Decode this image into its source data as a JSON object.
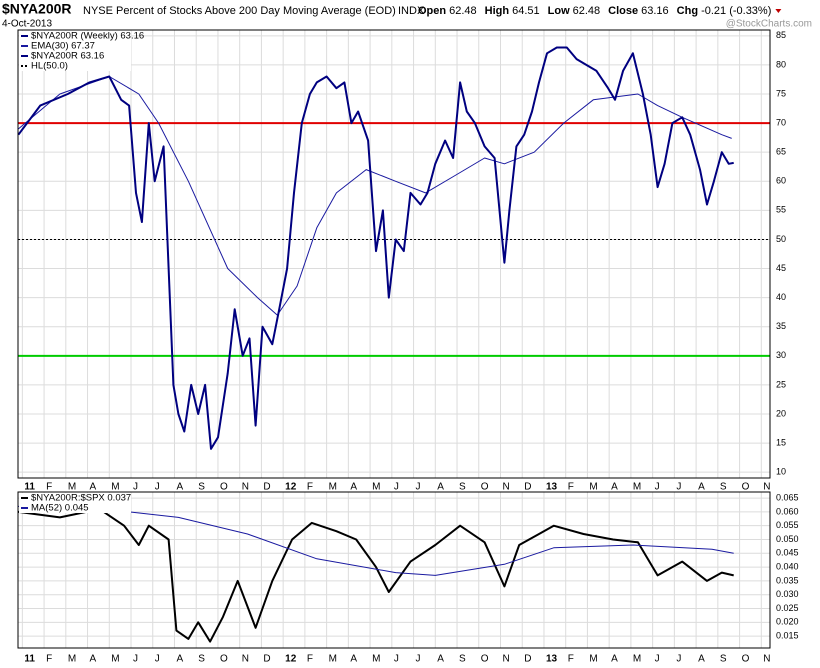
{
  "chart_data": [
    {
      "type": "line",
      "title": "$NYA200R",
      "subtitle": "NYSE Percent of Stocks Above 200 Day Moving Average (EOD)",
      "exchange": "INDX",
      "date": "4-Oct-2013",
      "quote": [
        {
          "label": "Open",
          "value": 62.48
        },
        {
          "label": "High",
          "value": 64.51
        },
        {
          "label": "Low",
          "value": 62.48
        },
        {
          "label": "Close",
          "value": 63.16
        },
        {
          "label": "Chg",
          "text": "-0.21 (-0.33%)"
        }
      ],
      "watermark": "@StockCharts.com",
      "bars_legend": "$NYA200R (Weekly) 63.16",
      "xlim": [
        -0.2,
        34.4
      ],
      "ylim": [
        9,
        86
      ],
      "yticks": [
        10,
        15,
        20,
        25,
        30,
        35,
        40,
        45,
        50,
        55,
        60,
        65,
        70,
        75,
        80,
        85
      ],
      "xticks": [
        {
          "value": 0,
          "label": "11"
        },
        {
          "value": 1,
          "label": "F"
        },
        {
          "value": 2,
          "label": "M"
        },
        {
          "value": 3,
          "label": "A"
        },
        {
          "value": 4,
          "label": "M"
        },
        {
          "value": 5,
          "label": "J"
        },
        {
          "value": 6,
          "label": "J"
        },
        {
          "value": 7,
          "label": "A"
        },
        {
          "value": 8,
          "label": "S"
        },
        {
          "value": 9,
          "label": "O"
        },
        {
          "value": 10,
          "label": "N"
        },
        {
          "value": 11,
          "label": "D"
        },
        {
          "value": 12,
          "label": "12"
        },
        {
          "value": 13,
          "label": "F"
        },
        {
          "value": 14,
          "label": "M"
        },
        {
          "value": 15,
          "label": "A"
        },
        {
          "value": 16,
          "label": "M"
        },
        {
          "value": 17,
          "label": "J"
        },
        {
          "value": 18,
          "label": "J"
        },
        {
          "value": 19,
          "label": "A"
        },
        {
          "value": 20,
          "label": "S"
        },
        {
          "value": 21,
          "label": "O"
        },
        {
          "value": 22,
          "label": "N"
        },
        {
          "value": 23,
          "label": "D"
        },
        {
          "value": 24,
          "label": "13"
        },
        {
          "value": 25,
          "label": "F"
        },
        {
          "value": 26,
          "label": "M"
        },
        {
          "value": 27,
          "label": "A"
        },
        {
          "value": 28,
          "label": "M"
        },
        {
          "value": 29,
          "label": "J"
        },
        {
          "value": 30,
          "label": "J"
        },
        {
          "value": 31,
          "label": "A"
        },
        {
          "value": 32,
          "label": "S"
        },
        {
          "value": 33,
          "label": "O"
        },
        {
          "value": 34,
          "label": "N"
        }
      ],
      "grid": true,
      "hlines": [
        {
          "name": "HL(50.0)",
          "value": 50,
          "color": "#000000",
          "style": "dotted"
        },
        {
          "value": 70,
          "color": "#e00000",
          "style": "solid"
        },
        {
          "value": 30,
          "color": "#00cc00",
          "style": "solid"
        }
      ],
      "series": [
        {
          "name": "EMA(30) 67.37",
          "color": "#1a1aa0",
          "width": 1,
          "x": [
            -0.18,
            1.73,
            4.0,
            5.36,
            6.27,
            7.64,
            9.45,
            10.82,
            11.73,
            12.64,
            13.55,
            14.45,
            15.82,
            17.18,
            18.55,
            19.91,
            21.27,
            22.18,
            23.55,
            24.91,
            26.27,
            28.32,
            29.23,
            30.36,
            32.18,
            32.64
          ],
          "values": [
            69,
            75,
            78,
            75,
            70,
            60,
            45,
            40,
            37,
            42,
            52,
            58,
            62,
            60,
            58,
            61,
            64,
            63,
            65,
            70,
            74,
            75,
            73,
            71,
            68,
            67.37
          ]
        },
        {
          "name": "$NYA200R 63.16",
          "color": "#000080",
          "width": 2,
          "x": [
            -0.18,
            0.82,
            2.09,
            3.09,
            4.0,
            4.55,
            4.91,
            5.23,
            5.5,
            5.82,
            6.09,
            6.5,
            6.95,
            7.18,
            7.45,
            7.77,
            8.09,
            8.41,
            8.68,
            9.0,
            9.45,
            9.77,
            10.14,
            10.45,
            10.73,
            11.05,
            11.5,
            11.82,
            12.18,
            12.5,
            12.86,
            13.23,
            13.55,
            14.0,
            14.45,
            14.82,
            15.14,
            15.45,
            15.91,
            16.27,
            16.59,
            16.86,
            17.18,
            17.55,
            17.86,
            18.32,
            18.64,
            19.0,
            19.45,
            19.82,
            20.14,
            20.45,
            20.82,
            21.27,
            21.73,
            22.18,
            22.41,
            22.73,
            23.09,
            23.45,
            23.77,
            24.14,
            24.59,
            25.05,
            25.5,
            25.95,
            26.41,
            26.95,
            27.27,
            27.64,
            28.09,
            28.55,
            28.91,
            29.23,
            29.55,
            29.91,
            30.36,
            30.73,
            31.18,
            31.5,
            31.82,
            32.18,
            32.5,
            32.73
          ],
          "values": [
            68,
            73,
            75,
            77,
            78,
            74,
            73,
            58,
            53,
            70,
            60,
            66,
            25,
            20,
            17,
            25,
            20,
            25,
            14,
            16,
            27,
            38,
            30,
            33,
            18,
            35,
            32,
            38,
            45,
            58,
            70,
            75,
            77,
            78,
            76,
            77,
            70,
            72,
            67,
            48,
            55,
            40,
            50,
            48,
            58,
            56,
            58,
            63,
            67,
            64,
            77,
            72,
            70,
            66,
            64,
            46,
            55,
            66,
            68,
            72,
            77,
            82,
            83,
            83,
            81,
            80,
            79,
            76,
            74,
            79,
            82,
            75,
            68,
            59,
            63,
            70,
            71,
            68,
            62,
            56,
            60,
            65,
            63,
            63.16
          ]
        }
      ]
    },
    {
      "type": "line",
      "xlim": [
        -0.2,
        34.4
      ],
      "ylim": [
        0.0107,
        0.0672
      ],
      "yticks": [
        0.015,
        {
          "value": 0.02,
          "label": "0.020"
        },
        0.025,
        {
          "value": 0.03,
          "label": "0.030"
        },
        0.035,
        {
          "value": 0.04,
          "label": "0.040"
        },
        0.045,
        {
          "value": 0.05,
          "label": "0.050"
        },
        0.055,
        {
          "value": 0.06,
          "label": "0.060"
        },
        0.065
      ],
      "grid": true,
      "series": [
        {
          "name": "$NYA200R:$SPX 0.037",
          "color": "#000000",
          "width": 2,
          "x": [
            -0.18,
            1.73,
            3.55,
            4.68,
            5.36,
            5.82,
            6.73,
            7.09,
            7.64,
            8.09,
            8.64,
            9.23,
            9.91,
            10.73,
            11.5,
            12.41,
            13.32,
            14.45,
            15.36,
            16.27,
            16.86,
            17.86,
            19.0,
            20.14,
            21.27,
            22.18,
            22.86,
            23.77,
            24.45,
            25.82,
            27.18,
            28.32,
            29.23,
            30.36,
            31.5,
            32.18,
            32.73
          ],
          "values": [
            0.06,
            0.058,
            0.061,
            0.055,
            0.048,
            0.055,
            0.05,
            0.017,
            0.014,
            0.02,
            0.013,
            0.022,
            0.035,
            0.018,
            0.035,
            0.05,
            0.056,
            0.053,
            0.05,
            0.04,
            0.031,
            0.042,
            0.048,
            0.055,
            0.049,
            0.033,
            0.048,
            0.052,
            0.055,
            0.052,
            0.05,
            0.049,
            0.037,
            0.042,
            0.035,
            0.038,
            0.037
          ]
        },
        {
          "name": "MA(52) 0.045",
          "color": "#1a1aa0",
          "width": 1,
          "x": [
            -0.18,
            4.91,
            7.18,
            10.36,
            13.55,
            17.18,
            19.0,
            22.18,
            24.45,
            28.09,
            31.73,
            32.73
          ],
          "values": [
            0.062,
            0.06,
            0.058,
            0.052,
            0.043,
            0.038,
            0.037,
            0.041,
            0.047,
            0.048,
            0.0465,
            0.045
          ]
        }
      ]
    }
  ]
}
